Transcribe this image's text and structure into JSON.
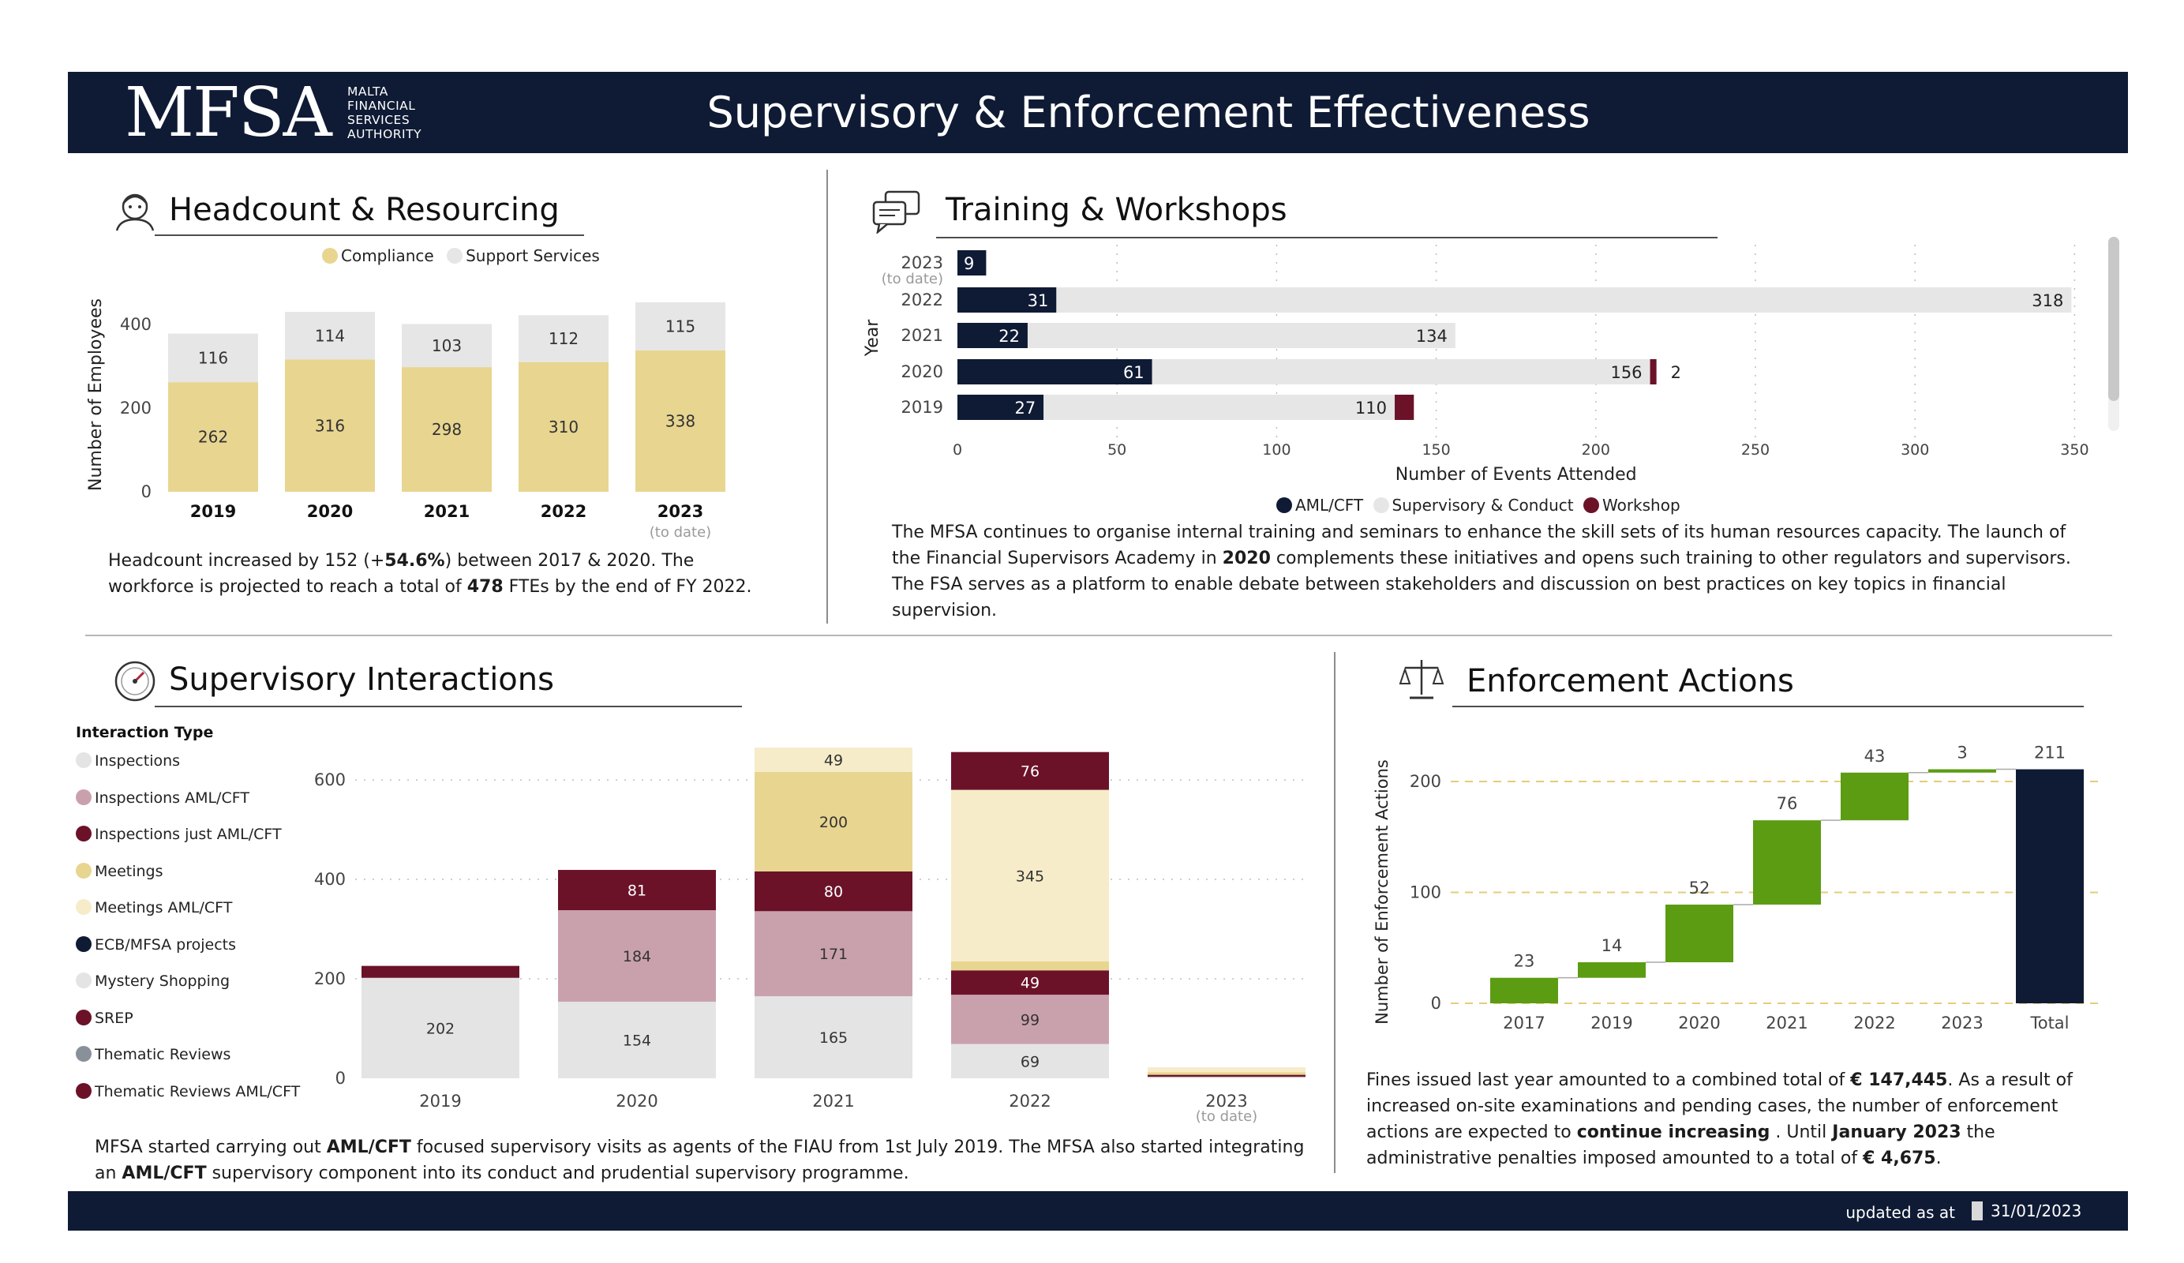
{
  "header": {
    "logo": "MFSA",
    "logo_sub": [
      "MALTA",
      "FINANCIAL",
      "SERVICES",
      "AUTHORITY"
    ],
    "title": "Supervisory & Enforcement Effectiveness"
  },
  "footer": {
    "updated_label": "updated as at",
    "date": "31/01/2023"
  },
  "headcount": {
    "title": "Headcount & Resourcing",
    "legend": [
      "Compliance",
      "Support Services"
    ],
    "text_html": "Headcount increased by 152 (+<b>54.6%</b>) between 2017 &amp; 2020. The workforce is projected to reach a total of <b>478</b> FTEs by the end of FY 2022."
  },
  "training": {
    "title": "Training & Workshops",
    "legend": [
      "AML/CFT",
      "Supervisory & Conduct",
      "Workshop"
    ],
    "text_html": "The MFSA continues to organise internal training and seminars to enhance the skill sets of its human resources capacity. The launch of the Financial Supervisors Academy in <b>2020</b> complements these initiatives and opens such training to other regulators and supervisors. The FSA serves as a platform to enable debate between stakeholders and discussion on best practices on key topics in financial supervision."
  },
  "interactions": {
    "title": "Supervisory Interactions",
    "legend_title": "Interaction Type",
    "text_html": "MFSA started carrying out <b>AML/CFT</b> focused supervisory visits as agents of the FIAU from 1st July 2019. The MFSA also started integrating an <b>AML/CFT</b> supervisory component into its conduct and prudential supervisory programme."
  },
  "enforcement": {
    "title": "Enforcement Actions",
    "text_html": "Fines issued last year amounted to a combined total of <b>€ 147,445</b>. As a result of increased on-site examinations and pending cases, the number of enforcement actions are expected to <b>continue increasing</b> . Until <b>January 2023</b> the administrative penalties imposed amounted to a total of <b>€ 4,675</b>."
  },
  "colors": {
    "navy": "#0f1b35",
    "compliance": "#e8d590",
    "support": "#e6e6e6",
    "workshop": "#6b1229",
    "pink": "#c9a1ad",
    "cream": "#f6ecc9",
    "gray_dot": "#8a9099",
    "green": "#5b9c12"
  },
  "chart_data": [
    {
      "id": "headcount",
      "type": "bar",
      "stacked": true,
      "categories": [
        "2019",
        "2020",
        "2021",
        "2022",
        "2023"
      ],
      "category_notes": [
        "",
        "",
        "",
        "",
        "(to date)"
      ],
      "series": [
        {
          "name": "Compliance",
          "values": [
            262,
            316,
            298,
            310,
            338
          ]
        },
        {
          "name": "Support Services",
          "values": [
            116,
            114,
            103,
            112,
            115
          ]
        }
      ],
      "ylabel": "Number of Employees",
      "yticks": [
        0,
        200,
        400
      ],
      "ylim": [
        0,
        460
      ]
    },
    {
      "id": "training",
      "type": "bar",
      "orientation": "horizontal",
      "stacked": true,
      "categories": [
        "2023",
        "2022",
        "2021",
        "2020",
        "2019"
      ],
      "category_notes": [
        "(to date)",
        "",
        "",
        "",
        ""
      ],
      "series": [
        {
          "name": "AML/CFT",
          "values": [
            9,
            31,
            22,
            61,
            27
          ]
        },
        {
          "name": "Supervisory & Conduct",
          "values": [
            0,
            318,
            134,
            156,
            110
          ]
        },
        {
          "name": "Workshop",
          "values": [
            0,
            0,
            0,
            2,
            6
          ]
        }
      ],
      "value_labels": {
        "AML/CFT": [
          "9",
          "31",
          "22",
          "61",
          "27"
        ],
        "Supervisory & Conduct": [
          "",
          "318",
          "134",
          "156",
          "110"
        ],
        "Workshop": [
          "",
          "",
          "",
          "2",
          ""
        ]
      },
      "xlabel": "Number of Events Attended",
      "ylabel": "Year",
      "xticks": [
        0,
        50,
        100,
        150,
        200,
        250,
        300,
        350
      ],
      "xlim": [
        0,
        350
      ]
    },
    {
      "id": "interactions",
      "type": "bar",
      "stacked": true,
      "categories": [
        "2019",
        "2020",
        "2021",
        "2022",
        "2023"
      ],
      "category_notes": [
        "",
        "",
        "",
        "",
        "(to date)"
      ],
      "legend_series": [
        "Inspections",
        "Inspections  AML/CFT",
        "Inspections just AML/CFT",
        "Meetings",
        "Meetings  AML/CFT",
        "ECB/MFSA projects",
        "Mystery Shopping",
        "SREP",
        "Thematic Reviews",
        "Thematic Reviews   AML/CFT"
      ],
      "series": [
        {
          "name": "Inspections",
          "values": [
            202,
            154,
            165,
            69,
            3
          ]
        },
        {
          "name": "Inspections  AML/CFT",
          "values": [
            0,
            184,
            171,
            99,
            0
          ]
        },
        {
          "name": "Inspections just AML/CFT",
          "values": [
            24,
            81,
            80,
            49,
            4
          ]
        },
        {
          "name": "Meetings",
          "values": [
            0,
            0,
            200,
            18,
            5
          ]
        },
        {
          "name": "Meetings  AML/CFT",
          "values": [
            0,
            0,
            49,
            345,
            10
          ]
        },
        {
          "name": "SREP",
          "values": [
            0,
            0,
            0,
            76,
            0
          ]
        }
      ],
      "value_labels": {
        "Inspections": [
          "202",
          "154",
          "165",
          "69",
          ""
        ],
        "Inspections  AML/CFT": [
          "",
          "184",
          "171",
          "99",
          ""
        ],
        "Inspections just AML/CFT": [
          "",
          "81",
          "80",
          "49",
          ""
        ],
        "Meetings": [
          "",
          "",
          "200",
          "",
          ""
        ],
        "Meetings  AML/CFT": [
          "",
          "",
          "49",
          "345",
          ""
        ],
        "SREP": [
          "",
          "",
          "",
          "76",
          ""
        ]
      },
      "yticks": [
        0,
        200,
        400,
        600
      ],
      "ylim": [
        0,
        690
      ]
    },
    {
      "id": "enforcement",
      "type": "waterfall",
      "categories": [
        "2017",
        "2019",
        "2020",
        "2021",
        "2022",
        "2023",
        "Total"
      ],
      "values": [
        23,
        14,
        52,
        76,
        43,
        3,
        211
      ],
      "ylabel": "Number of Enforcement Actions",
      "yticks": [
        0,
        100,
        200
      ],
      "ylim": [
        0,
        230
      ]
    }
  ]
}
